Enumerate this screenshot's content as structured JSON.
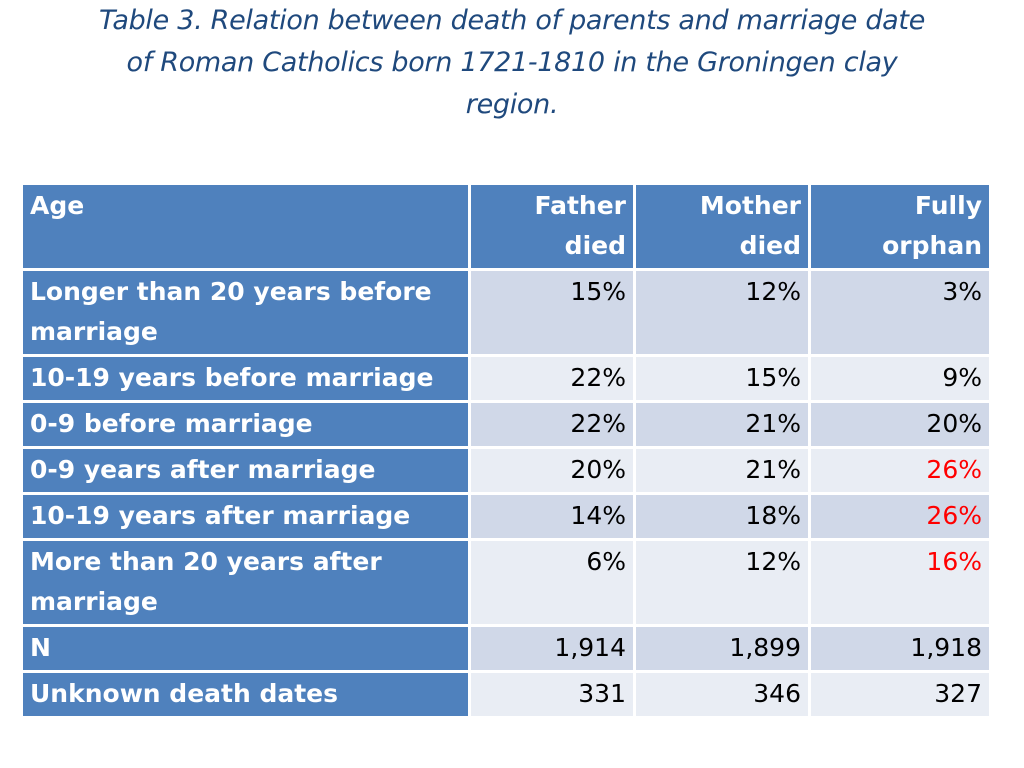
{
  "title": {
    "line1": "Table 3. Relation between death of parents and marriage date",
    "line2": "of Roman Catholics born 1721-1810 in the Groningen clay",
    "line3": "region."
  },
  "table": {
    "header": {
      "age": "Age",
      "father_l1": "Father",
      "father_l2": "died",
      "mother_l1": "Mother",
      "mother_l2": "died",
      "fully_l1": "Fully",
      "fully_l2": "orphan"
    },
    "rows": [
      {
        "label": "Longer than 20 years before marriage",
        "father": "15%",
        "mother": "12%",
        "fully": "3%"
      },
      {
        "label": "10-19 years before marriage",
        "father": "22%",
        "mother": "15%",
        "fully": "9%"
      },
      {
        "label": "0-9 before marriage",
        "father": "22%",
        "mother": "21%",
        "fully": "20%"
      },
      {
        "label": "0-9 years after marriage",
        "father": "20%",
        "mother": "21%",
        "fully": "26%"
      },
      {
        "label": "10-19 years after marriage",
        "father": "14%",
        "mother": "18%",
        "fully": "26%"
      },
      {
        "label": "More than 20 years after marriage",
        "father": "6%",
        "mother": "12%",
        "fully": "16%"
      },
      {
        "label": "N",
        "father": "1,914",
        "mother": "1,899",
        "fully": "1,918"
      },
      {
        "label": "Unknown death dates",
        "father": "331",
        "mother": "346",
        "fully": "327"
      }
    ]
  },
  "colors": {
    "title": "#1f497d",
    "header_bg": "#4f81bd",
    "band_dark": "#d0d8e8",
    "band_light": "#e9edf4",
    "highlight": "#ff0000"
  }
}
